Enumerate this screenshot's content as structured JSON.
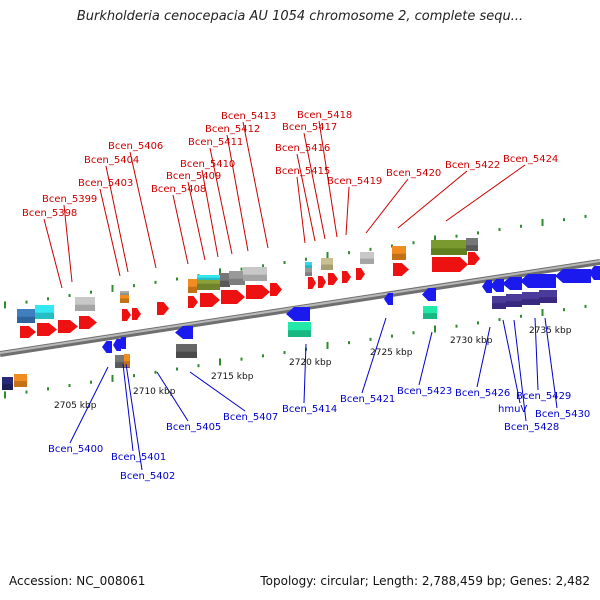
{
  "title": "Burkholderia cenocepacia AU 1054 chromosome 2, complete sequ...",
  "footer": {
    "accession": "Accession: NC_008061",
    "summary": "Topology: circular; Length: 2,788,459 bp; Genes: 2,482"
  },
  "colors": {
    "forward_label": "#cc0000",
    "reverse_label": "#0000cc",
    "backbone": "#8c8c8c",
    "tick": "#2e8b2e"
  },
  "scale_labels": [
    "2705 kbp",
    "2710 kbp",
    "2715 kbp",
    "2720 kbp",
    "2725 kbp",
    "2730 kbp",
    "2735 kbp"
  ],
  "forward_genes": [
    "Bcen_5398",
    "Bcen_5399",
    "Bcen_5403",
    "Bcen_5404",
    "Bcen_5406",
    "Bcen_5408",
    "Bcen_5409",
    "Bcen_5410",
    "Bcen_5411",
    "Bcen_5412",
    "Bcen_5413",
    "Bcen_5415",
    "Bcen_5416",
    "Bcen_5417",
    "Bcen_5418",
    "Bcen_5419",
    "Bcen_5420",
    "Bcen_5422",
    "Bcen_5424"
  ],
  "reverse_genes": [
    "Bcen_5400",
    "Bcen_5401",
    "Bcen_5402",
    "Bcen_5405",
    "Bcen_5407",
    "Bcen_5414",
    "Bcen_5421",
    "Bcen_5423",
    "Bcen_5426",
    "hmuV",
    "Bcen_5428",
    "Bcen_5429",
    "Bcen_5430"
  ]
}
